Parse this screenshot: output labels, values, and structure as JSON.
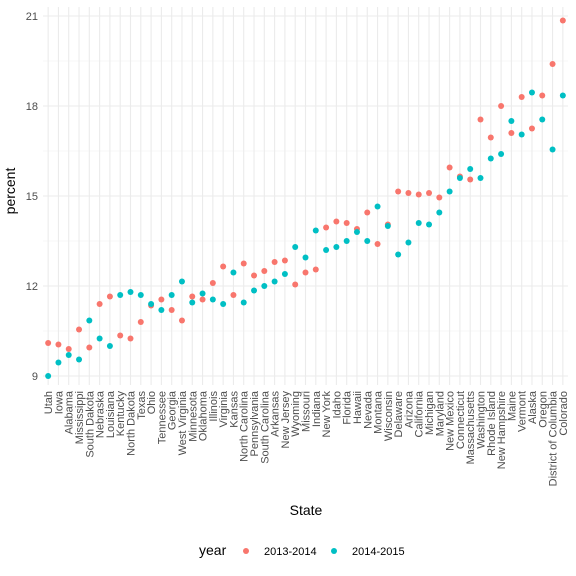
{
  "chart_data": {
    "type": "scatter",
    "xlabel": "State",
    "ylabel": "percent",
    "ylim": [
      8.7,
      21.3
    ],
    "yticks": [
      9,
      12,
      15,
      18,
      21
    ],
    "grid": true,
    "legend": {
      "title": "year",
      "position": "bottom",
      "entries": [
        {
          "label": "2013-2014",
          "color": "#F8766D"
        },
        {
          "label": "2014-2015",
          "color": "#00BFC4"
        }
      ]
    },
    "categories": [
      "Utah",
      "Iowa",
      "Alabama",
      "Mississippi",
      "South Dakota",
      "Nebraska",
      "Louisiana",
      "Kentucky",
      "North Dakota",
      "Texas",
      "Ohio",
      "Tennessee",
      "Georgia",
      "West Virginia",
      "Minnesota",
      "Oklahoma",
      "Illinois",
      "Virginia",
      "Kansas",
      "North Carolina",
      "Pennsylvania",
      "South Carolina",
      "Arkansas",
      "New Jersey",
      "Wyoming",
      "Missouri",
      "Indiana",
      "New York",
      "Idaho",
      "Florida",
      "Hawaii",
      "Nevada",
      "Montana",
      "Wisconsin",
      "Delaware",
      "Arizona",
      "California",
      "Michigan",
      "Maryland",
      "New Mexico",
      "Connecticut",
      "Massachusetts",
      "Washington",
      "Rhode Island",
      "New Hampshire",
      "Maine",
      "Vermont",
      "Alaska",
      "Oregon",
      "District of Columbia",
      "Colorado"
    ],
    "series": [
      {
        "name": "2013-2014",
        "color": "#F8766D",
        "values": [
          10.1,
          10.05,
          9.9,
          10.55,
          9.95,
          11.4,
          11.65,
          10.35,
          10.25,
          10.8,
          11.35,
          11.55,
          11.2,
          10.85,
          11.65,
          11.55,
          12.1,
          12.65,
          11.7,
          12.75,
          12.35,
          12.5,
          12.8,
          12.85,
          12.05,
          12.45,
          12.55,
          13.95,
          14.15,
          14.1,
          13.9,
          14.45,
          13.4,
          14.05,
          15.15,
          15.1,
          15.05,
          15.1,
          14.95,
          15.95,
          15.65,
          15.55,
          17.55,
          16.95,
          18.0,
          17.1,
          18.3,
          17.25,
          18.35,
          19.4,
          20.85
        ]
      },
      {
        "name": "2014-2015",
        "color": "#00BFC4",
        "values": [
          9.0,
          9.45,
          9.7,
          9.55,
          10.85,
          10.25,
          10.0,
          11.7,
          11.8,
          11.7,
          11.4,
          11.2,
          11.7,
          12.15,
          11.45,
          11.75,
          11.55,
          11.4,
          12.45,
          11.45,
          11.85,
          12.0,
          12.15,
          12.4,
          13.3,
          12.95,
          13.85,
          13.2,
          13.3,
          13.5,
          13.8,
          13.5,
          14.65,
          14.0,
          13.05,
          13.45,
          14.1,
          14.05,
          14.45,
          15.15,
          15.6,
          15.9,
          15.6,
          16.25,
          16.4,
          17.5,
          17.05,
          18.45,
          17.55,
          16.55,
          18.35
        ]
      }
    ]
  }
}
